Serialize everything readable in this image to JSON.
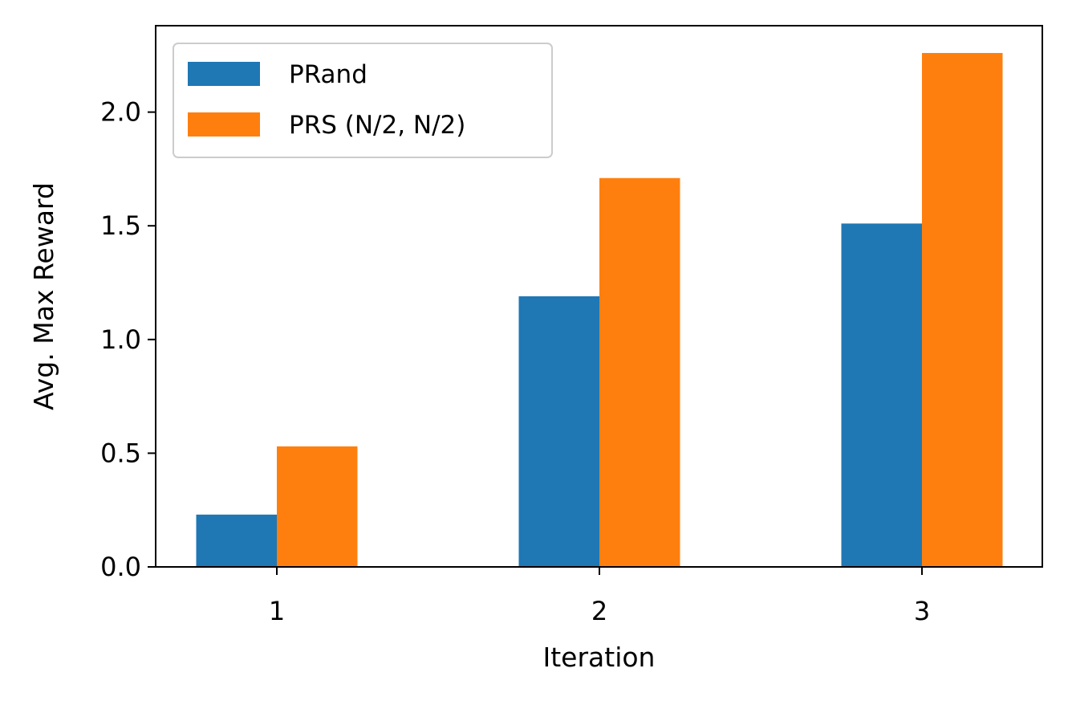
{
  "chart_data": {
    "type": "bar",
    "title": "",
    "xlabel": "Iteration",
    "ylabel": "Avg. Max Reward",
    "categories": [
      "1",
      "2",
      "3"
    ],
    "series": [
      {
        "name": "PRand",
        "color": "#1f77b4",
        "values": [
          0.23,
          1.19,
          1.51
        ]
      },
      {
        "name": "PRS (N/2, N/2)",
        "color": "#ff7f0e",
        "values": [
          0.53,
          1.71,
          2.26
        ]
      }
    ],
    "ylim": [
      0,
      2.38
    ],
    "yticks": [
      0.0,
      0.5,
      1.0,
      1.5,
      2.0
    ],
    "ytick_labels": [
      "0.0",
      "0.5",
      "1.0",
      "1.5",
      "2.0"
    ],
    "grid": false,
    "legend_position": "top-left"
  }
}
